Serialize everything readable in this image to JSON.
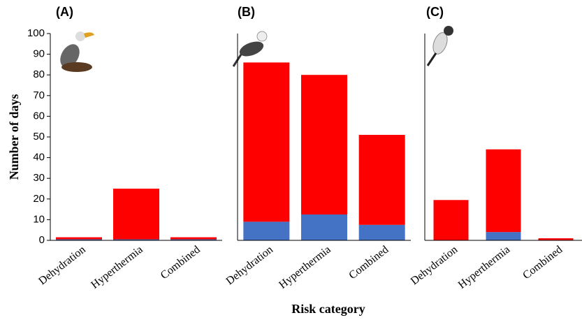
{
  "chart_data": [
    {
      "type": "bar",
      "stacked": true,
      "title": "(A)",
      "y_label": "Number of days",
      "categories": [
        "Dehydration",
        "Hyperthermia",
        "Combined"
      ],
      "series": [
        {
          "color": "#4472c4",
          "values": [
            0.5,
            0.5,
            0.5
          ]
        },
        {
          "color": "#ff0000",
          "values": [
            1,
            24.5,
            1
          ]
        }
      ],
      "ylim": [
        0,
        100
      ],
      "yticks": [
        0,
        10,
        20,
        30,
        40,
        50,
        60,
        70,
        80,
        90,
        100
      ]
    },
    {
      "type": "bar",
      "stacked": true,
      "title": "(B)",
      "x_label": "Risk category",
      "categories": [
        "Dehydration",
        "Hyperthermia",
        "Combined"
      ],
      "series": [
        {
          "color": "#4472c4",
          "values": [
            9,
            12.5,
            7.5
          ]
        },
        {
          "color": "#ff0000",
          "values": [
            77,
            67.5,
            43.5
          ]
        }
      ],
      "ylim": [
        0,
        100
      ]
    },
    {
      "type": "bar",
      "stacked": true,
      "title": "(C)",
      "categories": [
        "Dehydration",
        "Hyperthermia",
        "Combined"
      ],
      "series": [
        {
          "color": "#4472c4",
          "values": [
            0,
            4,
            0
          ]
        },
        {
          "color": "#ff0000",
          "values": [
            19.5,
            40,
            1
          ]
        }
      ],
      "ylim": [
        0,
        100
      ]
    }
  ]
}
